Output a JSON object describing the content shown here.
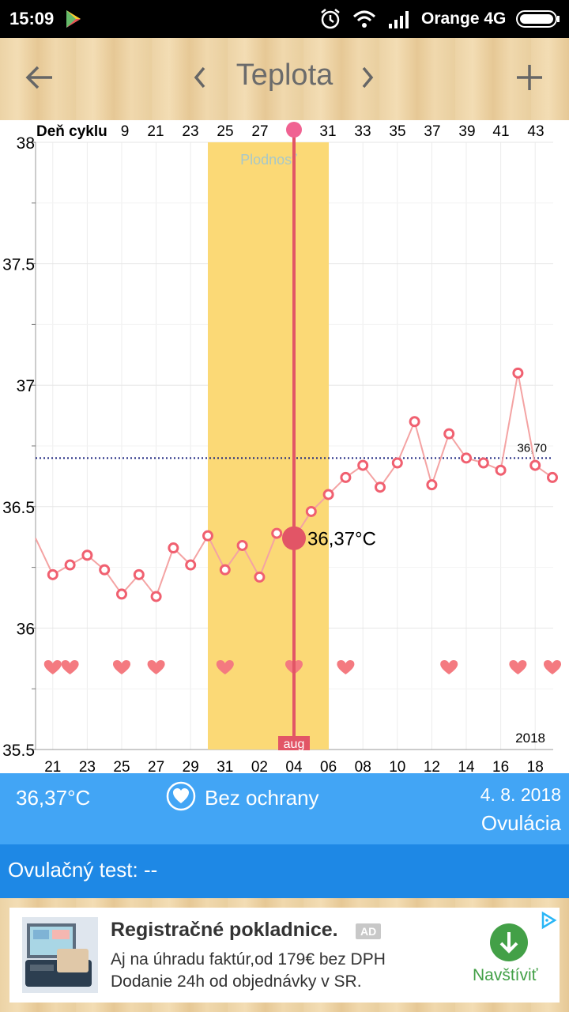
{
  "status_bar": {
    "time": "15:09",
    "carrier": "Orange 4G"
  },
  "toolbar": {
    "title": "Teplota"
  },
  "chart_data": {
    "type": "line",
    "title": "",
    "cycle_label": "Deň cyklu",
    "cycle_ticks": [
      "9",
      "21",
      "23",
      "25",
      "27",
      "",
      "31",
      "33",
      "35",
      "37",
      "39",
      "41",
      "43"
    ],
    "x_ticks": [
      "21",
      "23",
      "25",
      "27",
      "29",
      "31",
      "02",
      "04",
      "06",
      "08",
      "10",
      "12",
      "14",
      "16",
      "18"
    ],
    "ylim": [
      35.5,
      38
    ],
    "y_ticks": [
      "38",
      "37.5",
      "37",
      "36.5",
      "36",
      "35.5"
    ],
    "series": [
      {
        "values": [
          36.37,
          36.22,
          36.26,
          36.3,
          36.24,
          36.14,
          36.22,
          36.13,
          36.33,
          36.26,
          36.38,
          36.24,
          36.34,
          36.21,
          36.39,
          36.37,
          36.48,
          36.55,
          36.62,
          36.67,
          36.58,
          36.68,
          36.85,
          36.59,
          36.8,
          36.7,
          36.68,
          36.65,
          37.05,
          36.67,
          36.62
        ]
      }
    ],
    "cover_line": {
      "value": 36.7,
      "label": "36,70"
    },
    "fertile_label": "Plodnosť",
    "selected": {
      "label": "36,37°C",
      "value": 36.37
    },
    "month_label": "aug",
    "year_label": "2018",
    "heart_marker_days": [
      1,
      2,
      5,
      7,
      11,
      15,
      18,
      24,
      28,
      30
    ],
    "colors": {
      "fertile": "#fbd976",
      "line": "#f4a3a3",
      "point": "#f06070",
      "selected": "#e25566",
      "cover": "#1a237e",
      "heart": "#f47a80"
    }
  },
  "info": {
    "temperature": "36,37°C",
    "protection": "Bez ochrany",
    "date": "4. 8. 2018",
    "phase": "Ovulácia"
  },
  "test": {
    "text": "Ovulačný test: --"
  },
  "ad": {
    "headline": "Registračné pokladnice.",
    "badge": "AD",
    "line1": "Aj na úhradu faktúr,od 179€ bez DPH",
    "line2": "Dodanie 24h od objednávky v SR.",
    "cta": "Navštíviť"
  }
}
